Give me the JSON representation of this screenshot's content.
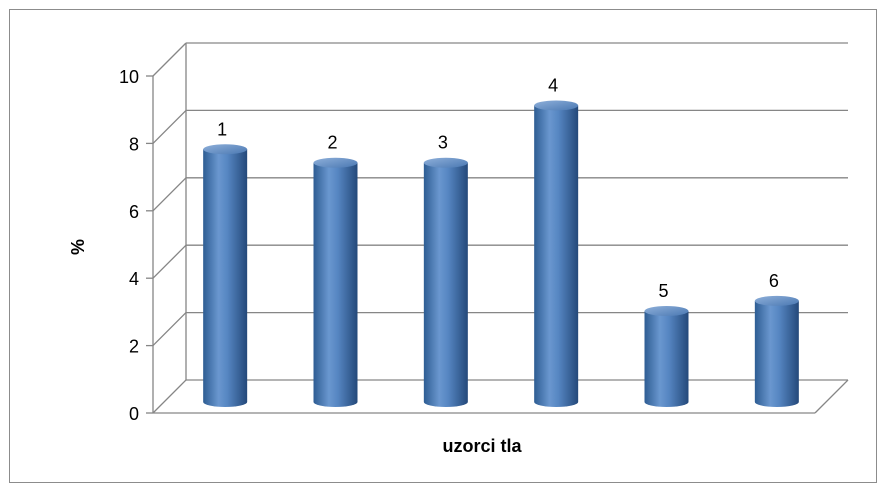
{
  "chart_data": {
    "type": "bar",
    "categories": [
      "1",
      "2",
      "3",
      "4",
      "5",
      "6"
    ],
    "values": [
      7.5,
      7.1,
      7.1,
      8.8,
      2.7,
      3.0
    ],
    "data_labels": [
      "1",
      "2",
      "3",
      "4",
      "5",
      "6"
    ],
    "title": "",
    "xlabel": "uzorci tla",
    "ylabel": "%",
    "ylim": [
      0,
      10
    ],
    "yticks": [
      "0",
      "2",
      "4",
      "6",
      "8",
      "10"
    ],
    "grid": true,
    "legend": "none",
    "style": "3d-cylinder",
    "colors": {
      "bar": "#4f81bd",
      "bar_dark": "#2c5a8f",
      "bar_light": "#95b3d7",
      "grid": "#868686"
    }
  }
}
